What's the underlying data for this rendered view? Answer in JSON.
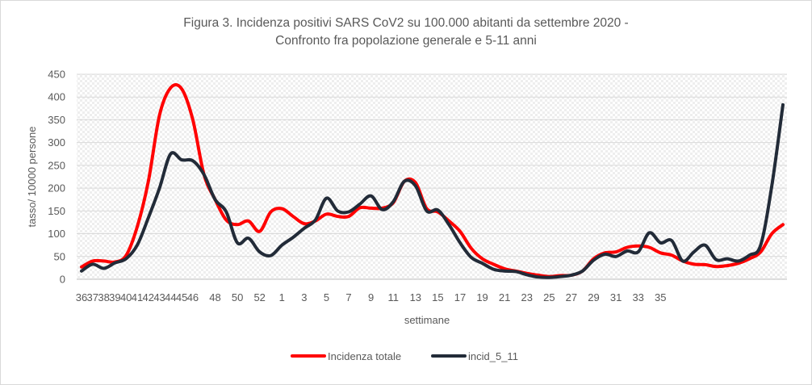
{
  "chart_data": {
    "type": "line",
    "title_line1": "Figura 3. Incidenza positivi SARS CoV2 su 100.000 abitanti da settembre 2020 -",
    "title_line2": "Confronto fra popolazione  generale e 5-11 anni",
    "xlabel": "settimane",
    "ylabel": "tasso/ 10000 persone",
    "ylim": [
      0,
      450
    ],
    "yticks": [
      0,
      50,
      100,
      150,
      200,
      250,
      300,
      350,
      400,
      450
    ],
    "grid": true,
    "legend_position": "bottom",
    "categories": [
      "36",
      "37",
      "38",
      "39",
      "40",
      "41",
      "42",
      "43",
      "44",
      "45",
      "46",
      "47",
      "48",
      "49",
      "50",
      "51",
      "52",
      "53",
      "1",
      "2",
      "3",
      "4",
      "5",
      "6",
      "7",
      "8",
      "9",
      "10",
      "11",
      "12",
      "13",
      "14",
      "15",
      "16",
      "17",
      "18",
      "19",
      "20",
      "21",
      "22",
      "23",
      "24",
      "25",
      "26",
      "27",
      "28",
      "29",
      "30",
      "31",
      "32",
      "33",
      "34",
      "35",
      "36",
      "37",
      "38",
      "39",
      "40",
      "41",
      "42",
      "43",
      "44",
      "45",
      "46"
    ],
    "xtick_labels": [
      "36",
      "38",
      "40",
      "42",
      "44",
      "46",
      "48",
      "50",
      "52",
      "1",
      "3",
      "5",
      "7",
      "9",
      "11",
      "13",
      "15",
      "17",
      "19",
      "21",
      "23",
      "25",
      "27",
      "29",
      "31",
      "33",
      "35",
      "37",
      "39",
      "41",
      "43",
      "45"
    ],
    "series": [
      {
        "name": "Incidenza totale",
        "color": "#ff0000",
        "values": [
          27,
          40,
          40,
          38,
          52,
          115,
          215,
          360,
          420,
          418,
          350,
          230,
          175,
          130,
          120,
          128,
          105,
          148,
          155,
          138,
          122,
          128,
          143,
          138,
          138,
          157,
          156,
          156,
          168,
          215,
          212,
          155,
          148,
          128,
          105,
          68,
          45,
          33,
          23,
          18,
          13,
          9,
          6,
          8,
          9,
          18,
          45,
          58,
          60,
          70,
          73,
          70,
          58,
          53,
          40,
          33,
          32,
          28,
          30,
          35,
          45,
          60,
          100,
          120
        ]
      },
      {
        "name": "incid_5_11",
        "color": "#222b38",
        "values": [
          18,
          33,
          24,
          36,
          45,
          75,
          135,
          200,
          275,
          262,
          260,
          230,
          175,
          148,
          80,
          90,
          60,
          52,
          75,
          92,
          112,
          130,
          178,
          150,
          148,
          165,
          183,
          153,
          170,
          215,
          205,
          150,
          152,
          120,
          80,
          48,
          35,
          22,
          18,
          17,
          10,
          5,
          4,
          6,
          9,
          18,
          42,
          55,
          50,
          62,
          60,
          102,
          80,
          85,
          40,
          60,
          75,
          43,
          45,
          40,
          53,
          75,
          205,
          383
        ]
      }
    ]
  }
}
